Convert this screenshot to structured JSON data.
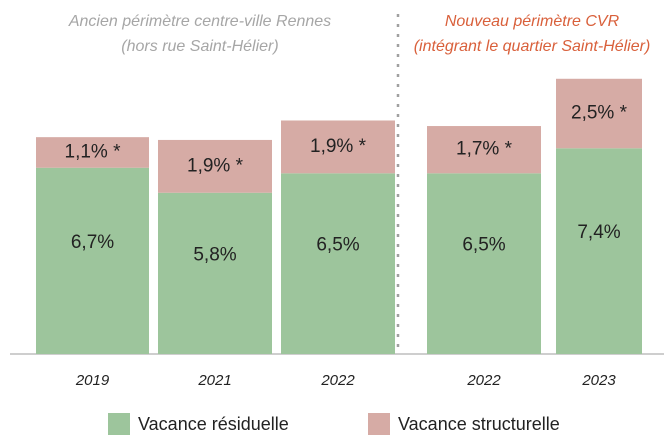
{
  "chart_data": {
    "type": "stacked-bar",
    "annotations": [
      {
        "text": [
          "Ancien périmètre centre-ville Rennes",
          "(hors rue Saint-Hélier)"
        ],
        "color": "#a6a6a6"
      },
      {
        "text": [
          "Nouveau périmètre CVR",
          "(intégrant le quartier Saint-Hélier)"
        ],
        "color": "#d9603b"
      }
    ],
    "categories": [
      "2019",
      "2021",
      "2022",
      "2022",
      "2023"
    ],
    "series": [
      {
        "name": "Vacance résiduelle",
        "color": "#9dc59c",
        "values": [
          6.7,
          5.8,
          6.5,
          6.5,
          7.4
        ],
        "value_labels": [
          "6,7%",
          "5,8%",
          "6,5%",
          "6,5%",
          "7,4%"
        ]
      },
      {
        "name": "Vacance structurelle",
        "color": "#d6aba5",
        "values": [
          1.1,
          1.9,
          1.9,
          1.7,
          2.5
        ],
        "value_labels": [
          "1,1% *",
          "1,9% *",
          "1,9% *",
          "1,7% *",
          "2,5% *"
        ]
      }
    ],
    "ylim": [
      0,
      10
    ]
  }
}
